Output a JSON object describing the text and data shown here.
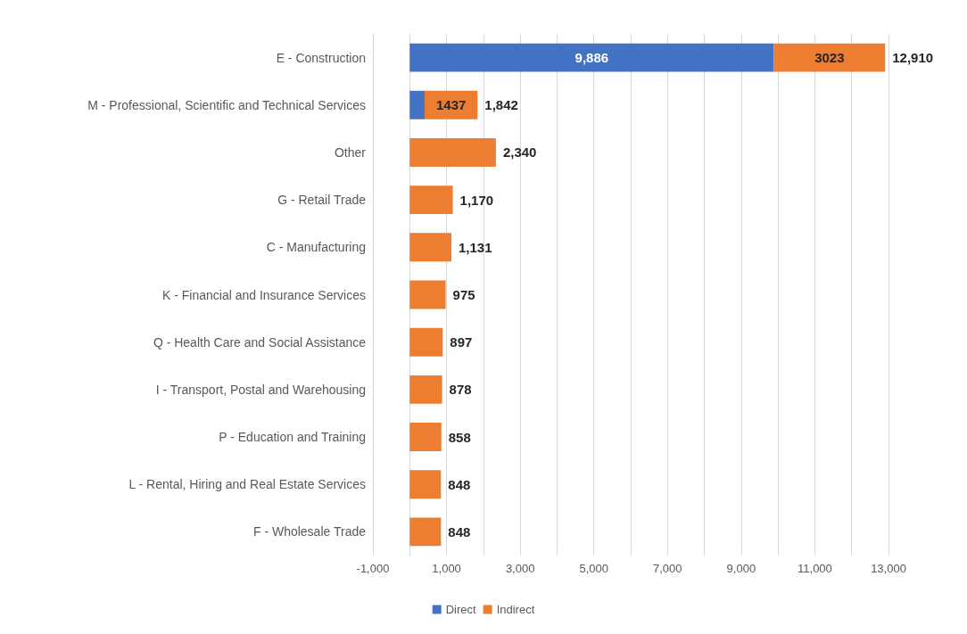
{
  "chart_data": {
    "type": "bar",
    "orientation": "horizontal",
    "stacked": true,
    "categories": [
      "E - Construction",
      "M - Professional, Scientific and Technical Services",
      "Other",
      "G - Retail Trade",
      "C - Manufacturing",
      "K - Financial and Insurance Services",
      "Q - Health Care and Social Assistance",
      "I - Transport, Postal and Warehousing",
      "P - Education and Training",
      "L - Rental, Hiring and Real Estate Services",
      "F - Wholesale Trade"
    ],
    "series": [
      {
        "name": "Direct",
        "color": "#4472c4",
        "values": [
          9886,
          405,
          0,
          0,
          0,
          0,
          0,
          0,
          0,
          0,
          0
        ],
        "value_labels": [
          "9,886",
          null,
          null,
          null,
          null,
          null,
          null,
          null,
          null,
          null,
          null
        ]
      },
      {
        "name": "Indirect",
        "color": "#ed7d31",
        "values": [
          3023,
          1437,
          2340,
          1170,
          1131,
          975,
          897,
          878,
          858,
          848,
          848
        ],
        "value_labels": [
          "3023",
          "1437",
          null,
          null,
          null,
          null,
          null,
          null,
          null,
          null,
          null
        ]
      }
    ],
    "totals": [
      "12,910",
      "1,842",
      "2,340",
      "1,170",
      "1,131",
      "975",
      "897",
      "878",
      "858",
      "848",
      "848"
    ],
    "xlim": [
      -1000,
      13000
    ],
    "xticks": [
      {
        "value": -1000,
        "label": "-1,000"
      },
      {
        "value": 0,
        "label": null
      },
      {
        "value": 1000,
        "label": "1,000"
      },
      {
        "value": 2000,
        "label": null
      },
      {
        "value": 3000,
        "label": "3,000"
      },
      {
        "value": 4000,
        "label": null
      },
      {
        "value": 5000,
        "label": "5,000"
      },
      {
        "value": 6000,
        "label": null
      },
      {
        "value": 7000,
        "label": "7,000"
      },
      {
        "value": 8000,
        "label": null
      },
      {
        "value": 9000,
        "label": "9,000"
      },
      {
        "value": 10000,
        "label": null
      },
      {
        "value": 11000,
        "label": "11,000"
      },
      {
        "value": 12000,
        "label": null
      },
      {
        "value": 13000,
        "label": "13,000"
      }
    ],
    "grid": "x",
    "legend": "bottom"
  }
}
